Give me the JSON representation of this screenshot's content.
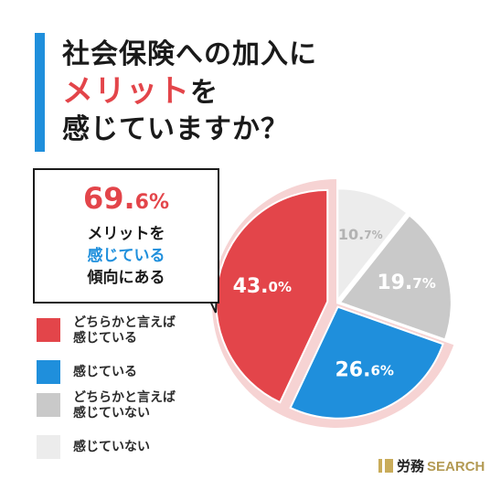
{
  "title": {
    "line1": "社会保険への加入に",
    "line2_accent": "メリット",
    "line2_rest": "を",
    "line3": "感じていますか？"
  },
  "callout": {
    "pct_main": "69.",
    "pct_decimal": "6%",
    "line1": "メリットを",
    "line2_highlight": "感じている",
    "line3": "傾向にある"
  },
  "legend": [
    {
      "label_lines": [
        "どちらかと言えば",
        "感じている"
      ],
      "color": "#e3454a"
    },
    {
      "label_lines": [
        "感じている"
      ],
      "color": "#1f8fdc"
    },
    {
      "label_lines": [
        "どちらかと言えば",
        "感じていない"
      ],
      "color": "#c9c9c9"
    },
    {
      "label_lines": [
        "感じていない"
      ],
      "color": "#ececec"
    }
  ],
  "chart_data": {
    "type": "pie",
    "title": "社会保険への加入にメリットを感じていますか？",
    "unit": "%",
    "slices": [
      {
        "name": "どちらかと言えば感じている",
        "value": 43.0,
        "label_main": "43.",
        "label_decimal": "0%",
        "color": "#e3454a"
      },
      {
        "name": "感じている",
        "value": 26.6,
        "label_main": "26.",
        "label_decimal": "6%",
        "color": "#1f8fdc"
      },
      {
        "name": "どちらかと言えば感じていない",
        "value": 19.7,
        "label_main": "19.",
        "label_decimal": "7%",
        "color": "#c9c9c9"
      },
      {
        "name": "感じていない",
        "value": 10.7,
        "label_main": "10.",
        "label_decimal": "7%",
        "color": "#ececec"
      }
    ],
    "highlight_ring_color": "#f6d3d3",
    "label_colors": [
      "#ffffff",
      "#ffffff",
      "#ffffff",
      "#b3b3b3"
    ]
  },
  "brand": {
    "jp": "労務",
    "en": "SEARCH"
  }
}
